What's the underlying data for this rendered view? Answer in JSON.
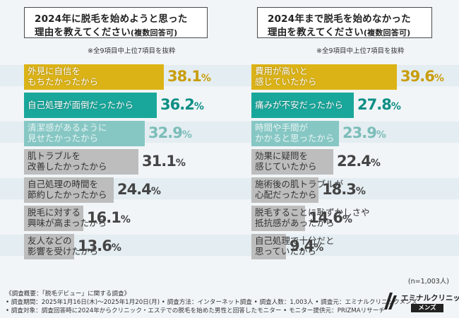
{
  "chart_data": [
    {
      "type": "bar",
      "orientation": "horizontal",
      "title_line1": "2024年に脱毛を始めようと思った",
      "title_line2": "理由を教えてください",
      "title_suffix": "(複数回答可)",
      "note": "※全9項目中上位7項目を抜粋",
      "categories": [
        "外見に自信を\nもちたかったから",
        "自己処理が面倒だったから",
        "清潔感があるように\n見せたかったから",
        "肌トラブルを\n改善したかったから",
        "自己処理の時間を\n節約したかったから",
        "脱毛に対する\n興味が高まったから",
        "友人などの\n影響を受けたから"
      ],
      "values": [
        38.1,
        36.2,
        32.9,
        31.1,
        24.4,
        16.1,
        13.6
      ],
      "pct_main": [
        "38.1",
        "36.2",
        "32.9",
        "31.1",
        "24.4",
        "16.1",
        "13.6"
      ],
      "unit": "%",
      "colors": [
        "#dcb317",
        "#1aa79b",
        "#86c7c4",
        "#bdbdbd",
        "#bdbdbd",
        "#bdbdbd",
        "#bdbdbd"
      ],
      "pct_colors": [
        "#c99d0c",
        "#0f8f86",
        "#7bbdb9",
        "#444444",
        "#444444",
        "#444444",
        "#444444"
      ]
    },
    {
      "type": "bar",
      "orientation": "horizontal",
      "title_line1": "2024年まで脱毛を始めなかった",
      "title_line2": "理由を教えてください",
      "title_suffix": "(複数回答可)",
      "note": "※全9項目中上位7項目を抜粋",
      "categories": [
        "費用が高いと\n感じていたから",
        "痛みが不安だったから",
        "時間や手間が\nかかると思ったから",
        "効果に疑問を\n感じていたから",
        "施術後の肌トラブルが\n心配だったから",
        "脱毛することに恥ずかしさや\n抵抗感があったから",
        "自己処理で十分だと\n思っていたから"
      ],
      "values": [
        39.6,
        27.8,
        23.9,
        22.4,
        18.3,
        14.6,
        9.4
      ],
      "pct_main": [
        "39.6",
        "27.8",
        "23.9",
        "22.4",
        "18.3",
        "14.6",
        "9.4"
      ],
      "unit": "%",
      "colors": [
        "#dcb317",
        "#1aa79b",
        "#86c7c4",
        "#bdbdbd",
        "#bdbdbd",
        "#bdbdbd",
        "#bdbdbd"
      ],
      "pct_colors": [
        "#c99d0c",
        "#0f8f86",
        "#7bbdb9",
        "#444444",
        "#444444",
        "#444444",
        "#444444"
      ]
    }
  ],
  "sample_size": "(n=1,003人)",
  "footer": {
    "line1": "《調査概要：「脱毛デビュー」に関する調査》",
    "line2": "• 調査期間：2025年1月16日(木)〜2025年1月20日(月) • 調査方法：インターネット調査 • 調査人数：1,003人 • 調査元：エミナルクリニックメンズ",
    "line3": "• 調査対象：調査回答時に2024年からクリニック・エステでの脱毛を始めた男性と回答したモニター • モニター提供元：PRIZMAリサーチ"
  },
  "logo": {
    "name": "エミナルクリニック",
    "badge": "メンズ"
  }
}
